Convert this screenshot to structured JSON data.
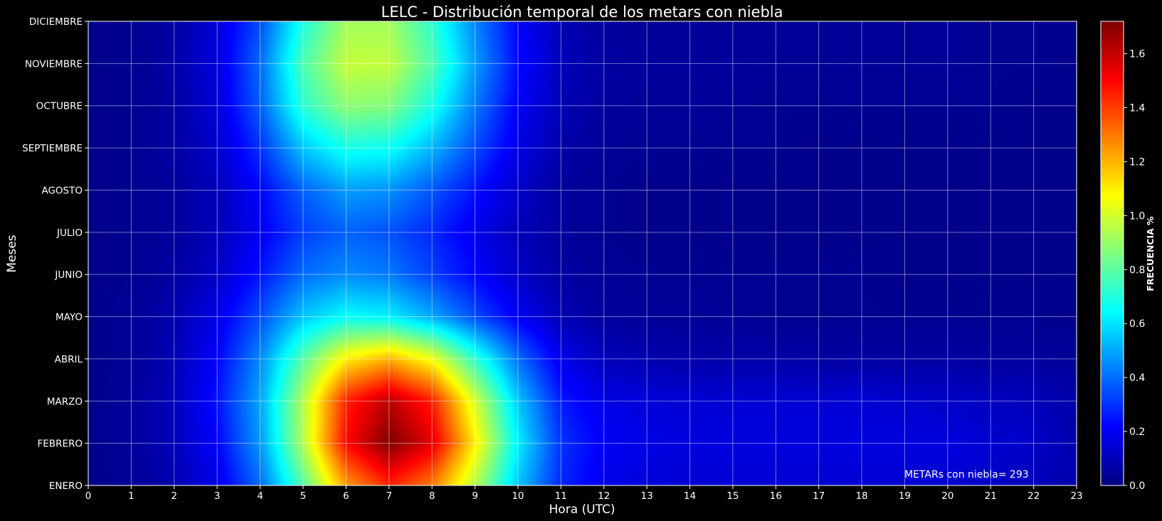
{
  "chart_data": {
    "type": "heatmap",
    "title": "LELC - Distribución temporal de los metars con niebla",
    "xlabel": "Hora (UTC)",
    "ylabel": "Meses",
    "x_ticks": [
      "0",
      "1",
      "2",
      "3",
      "4",
      "5",
      "6",
      "7",
      "8",
      "9",
      "10",
      "11",
      "12",
      "13",
      "14",
      "15",
      "16",
      "17",
      "18",
      "19",
      "20",
      "21",
      "22",
      "23"
    ],
    "y_ticks": [
      "ENERO",
      "FEBRERO",
      "MARZO",
      "ABRIL",
      "MAYO",
      "JUNIO",
      "JULIO",
      "AGOSTO",
      "SEPTIEMBRE",
      "OCTUBRE",
      "NOVIEMBRE",
      "DICIEMBRE"
    ],
    "xlim": [
      0,
      23
    ],
    "grid": true,
    "colormap": "jet",
    "colorbar": {
      "label": "FRECUENCIA %",
      "range": [
        0,
        1.72
      ],
      "ticks": [
        "0.0",
        "0.2",
        "0.4",
        "0.6",
        "0.8",
        "1.0",
        "1.2",
        "1.4",
        "1.6"
      ]
    },
    "annotation": "METARs con niebla= 293",
    "values": [
      [
        0.02,
        0.04,
        0.08,
        0.18,
        0.4,
        0.8,
        1.25,
        1.45,
        1.3,
        0.95,
        0.55,
        0.28,
        0.18,
        0.15,
        0.14,
        0.14,
        0.14,
        0.14,
        0.14,
        0.14,
        0.14,
        0.12,
        0.1,
        0.08
      ],
      [
        0.02,
        0.05,
        0.1,
        0.22,
        0.48,
        0.95,
        1.5,
        1.72,
        1.55,
        1.1,
        0.62,
        0.3,
        0.2,
        0.17,
        0.16,
        0.16,
        0.16,
        0.16,
        0.16,
        0.16,
        0.16,
        0.14,
        0.12,
        0.08
      ],
      [
        0.02,
        0.05,
        0.1,
        0.25,
        0.5,
        0.95,
        1.45,
        1.62,
        1.45,
        1.0,
        0.55,
        0.26,
        0.17,
        0.15,
        0.14,
        0.14,
        0.14,
        0.14,
        0.14,
        0.13,
        0.12,
        0.11,
        0.1,
        0.07
      ],
      [
        0.02,
        0.04,
        0.09,
        0.22,
        0.45,
        0.8,
        1.1,
        1.2,
        1.05,
        0.72,
        0.4,
        0.18,
        0.1,
        0.08,
        0.07,
        0.07,
        0.07,
        0.06,
        0.06,
        0.06,
        0.06,
        0.05,
        0.05,
        0.04
      ],
      [
        0.02,
        0.04,
        0.08,
        0.18,
        0.35,
        0.55,
        0.65,
        0.62,
        0.5,
        0.34,
        0.2,
        0.09,
        0.05,
        0.04,
        0.04,
        0.04,
        0.03,
        0.03,
        0.03,
        0.03,
        0.03,
        0.03,
        0.03,
        0.02
      ],
      [
        0.02,
        0.03,
        0.06,
        0.12,
        0.25,
        0.4,
        0.45,
        0.42,
        0.32,
        0.22,
        0.12,
        0.06,
        0.04,
        0.03,
        0.03,
        0.03,
        0.03,
        0.03,
        0.03,
        0.02,
        0.02,
        0.02,
        0.02,
        0.02
      ],
      [
        0.02,
        0.03,
        0.05,
        0.1,
        0.2,
        0.32,
        0.38,
        0.35,
        0.28,
        0.18,
        0.1,
        0.05,
        0.03,
        0.02,
        0.02,
        0.02,
        0.02,
        0.02,
        0.02,
        0.02,
        0.02,
        0.02,
        0.02,
        0.02
      ],
      [
        0.02,
        0.03,
        0.05,
        0.1,
        0.22,
        0.38,
        0.48,
        0.46,
        0.36,
        0.24,
        0.12,
        0.05,
        0.03,
        0.02,
        0.02,
        0.02,
        0.02,
        0.02,
        0.02,
        0.02,
        0.02,
        0.02,
        0.02,
        0.02
      ],
      [
        0.02,
        0.03,
        0.06,
        0.13,
        0.3,
        0.55,
        0.68,
        0.66,
        0.52,
        0.34,
        0.17,
        0.07,
        0.04,
        0.03,
        0.03,
        0.03,
        0.03,
        0.02,
        0.02,
        0.02,
        0.02,
        0.02,
        0.02,
        0.02
      ],
      [
        0.02,
        0.03,
        0.06,
        0.15,
        0.38,
        0.72,
        0.88,
        0.86,
        0.68,
        0.42,
        0.2,
        0.09,
        0.05,
        0.04,
        0.04,
        0.04,
        0.03,
        0.03,
        0.03,
        0.03,
        0.03,
        0.03,
        0.02,
        0.02
      ],
      [
        0.02,
        0.03,
        0.07,
        0.16,
        0.4,
        0.78,
        0.98,
        0.97,
        0.78,
        0.48,
        0.23,
        0.1,
        0.06,
        0.05,
        0.05,
        0.05,
        0.04,
        0.04,
        0.04,
        0.04,
        0.04,
        0.03,
        0.03,
        0.02
      ],
      [
        0.02,
        0.03,
        0.06,
        0.15,
        0.35,
        0.7,
        0.92,
        0.92,
        0.72,
        0.44,
        0.21,
        0.09,
        0.05,
        0.04,
        0.04,
        0.04,
        0.04,
        0.04,
        0.04,
        0.04,
        0.04,
        0.03,
        0.03,
        0.02
      ]
    ]
  }
}
